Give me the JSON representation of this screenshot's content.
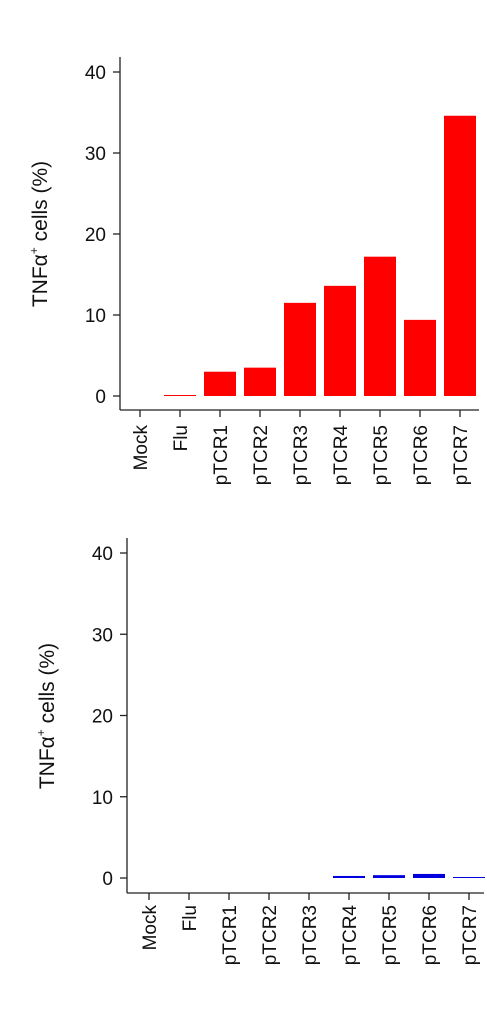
{
  "colors": {
    "top_bars": "#ff0000",
    "bottom_bars": "#0000dd",
    "axis": "#222222"
  },
  "chart_data": [
    {
      "type": "bar",
      "categories": [
        "Mock",
        "Flu",
        "pTCR1",
        "pTCR2",
        "pTCR3",
        "pTCR4",
        "pTCR5",
        "pTCR6",
        "pTCR7"
      ],
      "values": [
        0,
        0.05,
        3.0,
        3.5,
        11.5,
        13.6,
        17.2,
        9.4,
        34.6
      ],
      "title": "",
      "xlabel": "",
      "ylabel_main": "TNFα",
      "ylabel_sup": "+",
      "ylabel_rest": " cells (%)",
      "ylim": [
        0,
        40
      ],
      "yticks": [
        "0",
        "10",
        "20",
        "30",
        "40"
      ],
      "grid": false,
      "color": "#ff0000"
    },
    {
      "type": "bar",
      "categories": [
        "Mock",
        "Flu",
        "pTCR1",
        "pTCR2",
        "pTCR3",
        "pTCR4",
        "pTCR5",
        "pTCR6",
        "pTCR7"
      ],
      "values": [
        0,
        0,
        0,
        0,
        0,
        0.25,
        0.35,
        0.5,
        0.1
      ],
      "title": "",
      "xlabel": "",
      "ylabel_main": "TNFα",
      "ylabel_sup": "+",
      "ylabel_rest": " cells (%)",
      "ylim": [
        0,
        40
      ],
      "yticks": [
        "0",
        "10",
        "20",
        "30",
        "40"
      ],
      "grid": false,
      "color": "#0000dd"
    }
  ]
}
